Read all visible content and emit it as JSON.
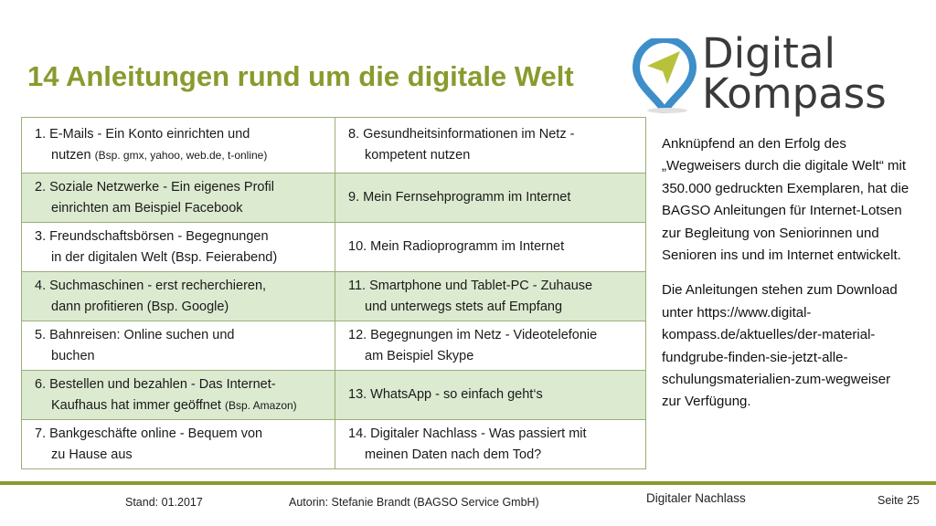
{
  "slide": {
    "title": "14 Anleitungen rund um die digitale Welt"
  },
  "logo": {
    "line1": "Digital",
    "line2": "Kompass",
    "icon": "location-pin-compass-icon",
    "colors": {
      "ring": "#3d8ec9",
      "arrow": "#b7c23a",
      "text": "#3a3a3a"
    }
  },
  "guides": [
    [
      {
        "l1": "1. E-Mails - Ein Konto einrichten und",
        "l2": "nutzen",
        "note": "(Bsp. gmx, yahoo, web.de, t-online)"
      },
      {
        "l1": "8. Gesundheitsinformationen im Netz -",
        "l2": "kompetent nutzen",
        "note": ""
      }
    ],
    [
      {
        "l1": "2. Soziale Netzwerke - Ein eigenes Profil",
        "l2": "einrichten am Beispiel Facebook",
        "note": ""
      },
      {
        "l1": "9. Mein Fernsehprogramm im Internet",
        "l2": "",
        "note": ""
      }
    ],
    [
      {
        "l1": "3. Freundschaftsbörsen - Begegnungen",
        "l2": "in der digitalen Welt (Bsp. Feierabend)",
        "note": ""
      },
      {
        "l1": "10. Mein Radioprogramm im Internet",
        "l2": "",
        "note": ""
      }
    ],
    [
      {
        "l1": "4. Suchmaschinen - erst recherchieren,",
        "l2": "dann profitieren (Bsp. Google)",
        "note": ""
      },
      {
        "l1": "11. Smartphone und Tablet-PC - Zuhause",
        "l2": "und unterwegs stets auf Empfang",
        "note": ""
      }
    ],
    [
      {
        "l1": "5. Bahnreisen: Online suchen und",
        "l2": "buchen",
        "note": ""
      },
      {
        "l1": "12. Begegnungen im Netz - Videotelefonie",
        "l2": "am Beispiel Skype",
        "note": ""
      }
    ],
    [
      {
        "l1": "6. Bestellen und bezahlen - Das Internet-",
        "l2": "Kaufhaus hat immer geöffnet",
        "note": "(Bsp. Amazon)"
      },
      {
        "l1": "13. WhatsApp - so einfach geht‘s",
        "l2": "",
        "note": ""
      }
    ],
    [
      {
        "l1": "7. Bankgeschäfte online - Bequem von",
        "l2": "zu Hause aus",
        "note": ""
      },
      {
        "l1": "14. Digitaler Nachlass - Was passiert mit",
        "l2": "meinen Daten nach dem Tod?",
        "note": ""
      }
    ]
  ],
  "sidebar": {
    "p1": "Anknüpfend an den Erfolg des „Wegweisers durch die digitale Welt“ mit 350.000 gedruckten Exemplaren, hat die BAGSO Anleitungen für Internet-Lotsen zur Begleitung von Seniorinnen und Senioren ins und im Internet entwickelt.",
    "p2": "Die Anleitungen stehen zum Download unter https://www.digital-kompass.de/aktuelles/der-material-fundgrube-finden-sie-jetzt-alle-schulungsmaterialien-zum-wegweiser zur Verfügung."
  },
  "footer": {
    "stand": "Stand: 01.2017",
    "author": "Autorin: Stefanie Brandt (BAGSO Service GmbH)",
    "topic": "Digitaler Nachlass",
    "page": "Seite 25"
  },
  "colors": {
    "accent": "#8a9a2e",
    "row_alt": "#dcead0",
    "border": "#9aae7a"
  }
}
